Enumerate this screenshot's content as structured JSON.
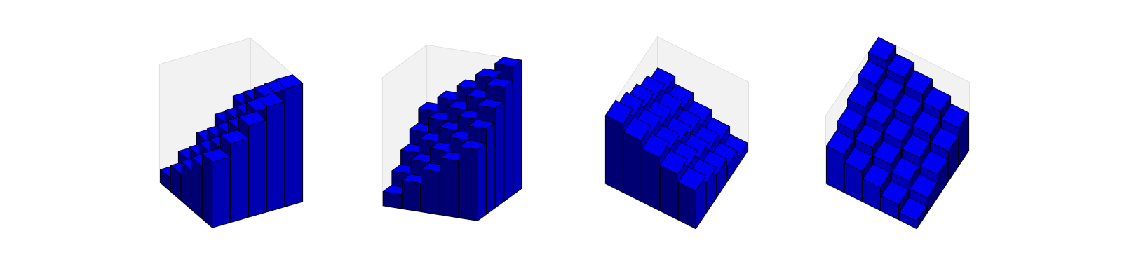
{
  "chart_data": {
    "type": "bar3d",
    "x": [
      0,
      1,
      2,
      3,
      4
    ],
    "y": [
      0,
      1,
      2,
      3,
      4
    ],
    "values": [
      [
        1,
        2,
        3,
        4,
        5
      ],
      [
        2,
        3,
        4,
        5,
        6
      ],
      [
        3,
        4,
        5,
        6,
        7
      ],
      [
        4,
        5,
        6,
        7,
        8
      ],
      [
        5,
        6,
        7,
        8,
        9
      ]
    ],
    "color": "#0000ff",
    "zlim": [
      0,
      9
    ],
    "views": [
      {
        "elev": 30,
        "azim": -60
      },
      {
        "elev": 20,
        "azim": -25
      },
      {
        "elev": 60,
        "azim": 150
      },
      {
        "elev": 60,
        "azim": 60
      }
    ]
  }
}
